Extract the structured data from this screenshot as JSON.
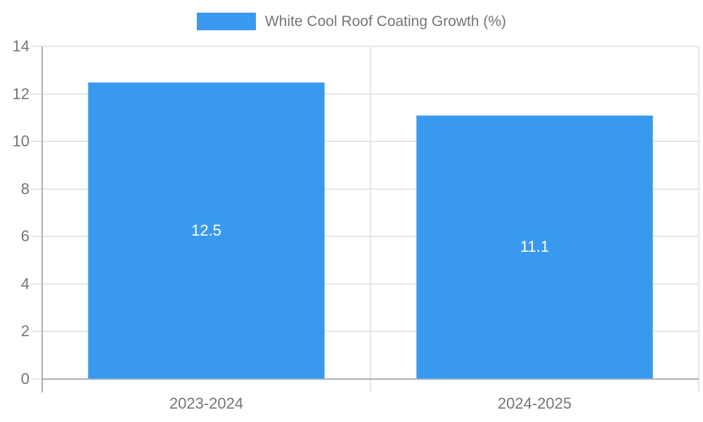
{
  "chart_data": {
    "type": "bar",
    "title": "",
    "legend": {
      "label": "White Cool Roof Coating Growth (%)",
      "position": "top"
    },
    "categories": [
      "2023-2024",
      "2024-2025"
    ],
    "series": [
      {
        "name": "White Cool Roof Coating Growth (%)",
        "values": [
          12.5,
          11.1
        ]
      }
    ],
    "data_labels": [
      "12.5",
      "11.1"
    ],
    "ylim": [
      0,
      14
    ],
    "yticks": [
      0,
      2,
      4,
      6,
      8,
      10,
      12,
      14
    ],
    "grid": true,
    "colors": {
      "bar": "#3999ee",
      "bar_label_text": "#ffffff",
      "gridline": "#e6e6e6",
      "axis_line": "#b0b0b0",
      "axis_text": "#757575"
    }
  }
}
